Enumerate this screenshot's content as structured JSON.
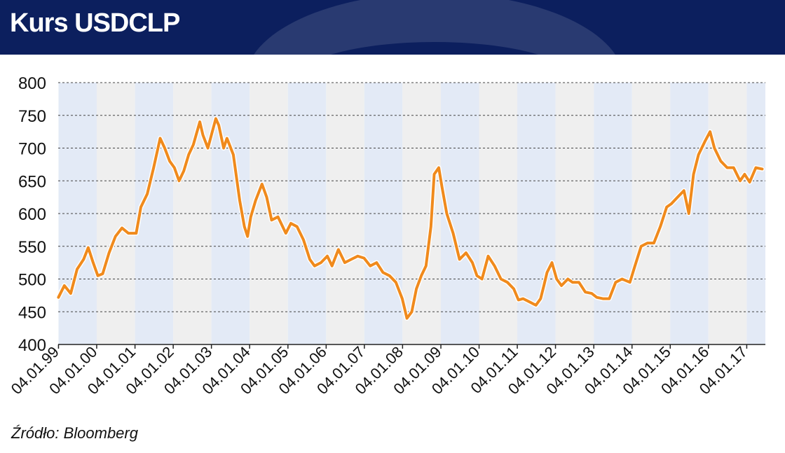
{
  "header": {
    "title": "Kurs USDCLP"
  },
  "footer": {
    "source": "Źródło: Bloomberg"
  },
  "colors": {
    "header_bg": "#0c1f5e",
    "line": "#f08a1c",
    "line_outline": "#ffffff",
    "band_blue": "#e3eaf6",
    "band_gray": "#efefef"
  },
  "chart_data": {
    "type": "line",
    "title": "Kurs USDCLP",
    "xlabel": "",
    "ylabel": "",
    "ylim": [
      400,
      800
    ],
    "yticks": [
      400,
      450,
      500,
      550,
      600,
      650,
      700,
      750,
      800
    ],
    "xlim": [
      "1999-01-01",
      "2017-07-01"
    ],
    "xticks": [
      {
        "date": "1999-01-04",
        "label": "04.01.99"
      },
      {
        "date": "2000-01-04",
        "label": "04.01.00"
      },
      {
        "date": "2001-01-04",
        "label": "04.01.01"
      },
      {
        "date": "2002-01-04",
        "label": "04.01.02"
      },
      {
        "date": "2003-01-04",
        "label": "04.01.03"
      },
      {
        "date": "2004-01-04",
        "label": "04.01.04"
      },
      {
        "date": "2005-01-04",
        "label": "04.01.05"
      },
      {
        "date": "2006-01-04",
        "label": "04.01.06"
      },
      {
        "date": "2007-01-04",
        "label": "04.01.07"
      },
      {
        "date": "2008-01-04",
        "label": "04.01.08"
      },
      {
        "date": "2009-01-04",
        "label": "04.01.09"
      },
      {
        "date": "2010-01-04",
        "label": "04.01.10"
      },
      {
        "date": "2011-01-04",
        "label": "04.01.11"
      },
      {
        "date": "2012-01-04",
        "label": "04.01.12"
      },
      {
        "date": "2013-01-04",
        "label": "04.01.13"
      },
      {
        "date": "2014-01-04",
        "label": "04.01.14"
      },
      {
        "date": "2015-01-04",
        "label": "04.01.15"
      },
      {
        "date": "2016-01-04",
        "label": "04.01.16"
      },
      {
        "date": "2017-01-04",
        "label": "04.01.17"
      }
    ],
    "grid": true,
    "series": [
      {
        "x": [
          "1999-01-04",
          "1999-03-01",
          "1999-05-01",
          "1999-07-01",
          "1999-09-01",
          "1999-10-15",
          "1999-12-01",
          "2000-01-15",
          "2000-03-01",
          "2000-05-01",
          "2000-07-01",
          "2000-09-01",
          "2000-11-01",
          "2001-01-15",
          "2001-03-01",
          "2001-05-01",
          "2001-07-01",
          "2001-09-01",
          "2001-10-15",
          "2001-12-01",
          "2002-01-15",
          "2002-03-01",
          "2002-04-15",
          "2002-06-01",
          "2002-07-15",
          "2002-09-15",
          "2002-10-15",
          "2002-12-01",
          "2003-02-15",
          "2003-03-15",
          "2003-05-01",
          "2003-06-01",
          "2003-08-01",
          "2003-10-01",
          "2003-11-15",
          "2003-12-15",
          "2004-01-15",
          "2004-03-01",
          "2004-05-01",
          "2004-06-15",
          "2004-08-01",
          "2004-10-01",
          "2004-12-15",
          "2005-02-01",
          "2005-04-01",
          "2005-06-01",
          "2005-08-01",
          "2005-09-15",
          "2005-11-15",
          "2006-01-15",
          "2006-03-01",
          "2006-05-01",
          "2006-07-01",
          "2006-09-01",
          "2006-11-01",
          "2007-01-01",
          "2007-03-01",
          "2007-05-01",
          "2007-07-01",
          "2007-09-01",
          "2007-11-01",
          "2008-01-01",
          "2008-02-15",
          "2008-04-01",
          "2008-05-15",
          "2008-07-01",
          "2008-08-15",
          "2008-10-01",
          "2008-11-01",
          "2008-12-15",
          "2009-01-15",
          "2009-03-01",
          "2009-05-01",
          "2009-07-01",
          "2009-09-01",
          "2009-11-01",
          "2009-12-15",
          "2010-02-01",
          "2010-04-01",
          "2010-06-01",
          "2010-08-01",
          "2010-10-01",
          "2010-12-01",
          "2011-01-15",
          "2011-03-01",
          "2011-05-01",
          "2011-07-01",
          "2011-08-15",
          "2011-09-15",
          "2011-10-15",
          "2011-12-01",
          "2012-01-15",
          "2012-03-01",
          "2012-05-01",
          "2012-06-15",
          "2012-08-15",
          "2012-10-15",
          "2012-12-15",
          "2013-02-01",
          "2013-04-01",
          "2013-06-01",
          "2013-08-01",
          "2013-10-01",
          "2013-12-15",
          "2014-02-01",
          "2014-04-01",
          "2014-06-01",
          "2014-08-01",
          "2014-10-01",
          "2014-12-01",
          "2015-01-15",
          "2015-03-15",
          "2015-05-15",
          "2015-07-01",
          "2015-08-15",
          "2015-10-01",
          "2015-12-01",
          "2016-01-20",
          "2016-03-01",
          "2016-05-01",
          "2016-07-01",
          "2016-09-01",
          "2016-11-01",
          "2016-12-15",
          "2017-02-01",
          "2017-04-01",
          "2017-06-01"
        ],
        "values": [
          472,
          490,
          478,
          515,
          530,
          548,
          525,
          505,
          508,
          540,
          565,
          578,
          570,
          570,
          610,
          630,
          670,
          715,
          700,
          680,
          670,
          650,
          665,
          690,
          705,
          740,
          720,
          700,
          745,
          735,
          700,
          715,
          690,
          620,
          580,
          565,
          595,
          620,
          645,
          625,
          590,
          595,
          570,
          585,
          580,
          560,
          530,
          520,
          525,
          535,
          520,
          545,
          525,
          530,
          535,
          532,
          520,
          525,
          510,
          505,
          495,
          470,
          440,
          450,
          485,
          505,
          520,
          580,
          660,
          670,
          640,
          600,
          570,
          530,
          540,
          525,
          505,
          500,
          535,
          520,
          500,
          495,
          485,
          468,
          470,
          465,
          460,
          470,
          490,
          510,
          525,
          500,
          490,
          500,
          495,
          495,
          480,
          478,
          472,
          470,
          470,
          495,
          500,
          495,
          520,
          550,
          555,
          555,
          580,
          610,
          615,
          625,
          635,
          600,
          660,
          690,
          710,
          725,
          700,
          680,
          670,
          670,
          650,
          660,
          648,
          670,
          668
        ]
      }
    ]
  }
}
